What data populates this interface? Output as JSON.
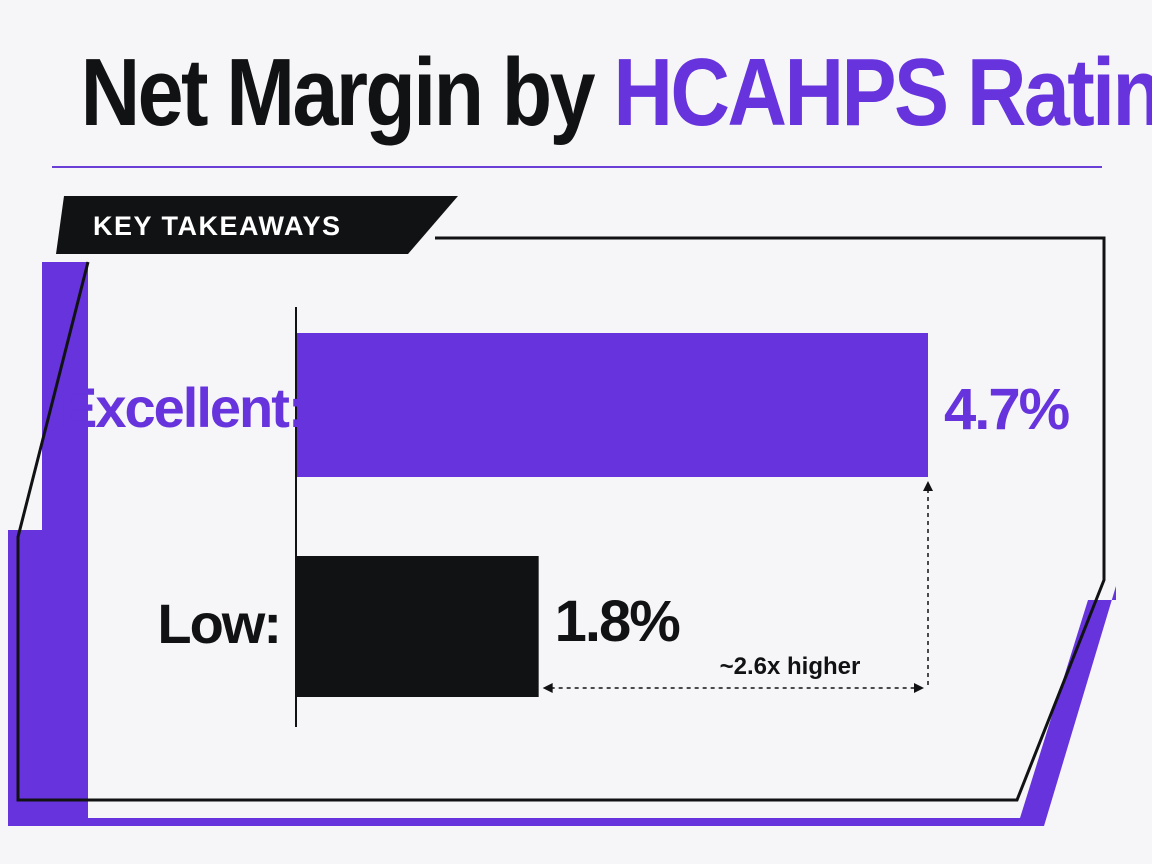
{
  "header": {
    "title_dark": "Net Margin by",
    "title_accent": "HCAHPS Rating"
  },
  "tag": {
    "label": "KEY TAKEAWAYS"
  },
  "colors": {
    "accent": "#6633dd",
    "dark": "#111214",
    "background": "#f6f5f8"
  },
  "chart_data": {
    "type": "bar",
    "orientation": "horizontal",
    "categories": [
      "Excellent:",
      "Low:"
    ],
    "values": [
      4.7,
      1.8
    ],
    "value_labels": [
      "4.7%",
      "1.8%"
    ],
    "bar_colors": [
      "#6633dd",
      "#111214"
    ],
    "label_colors": [
      "#6633dd",
      "#111214"
    ],
    "xlim": [
      0,
      4.7
    ],
    "grid": false,
    "annotation": "~2.6x higher"
  }
}
